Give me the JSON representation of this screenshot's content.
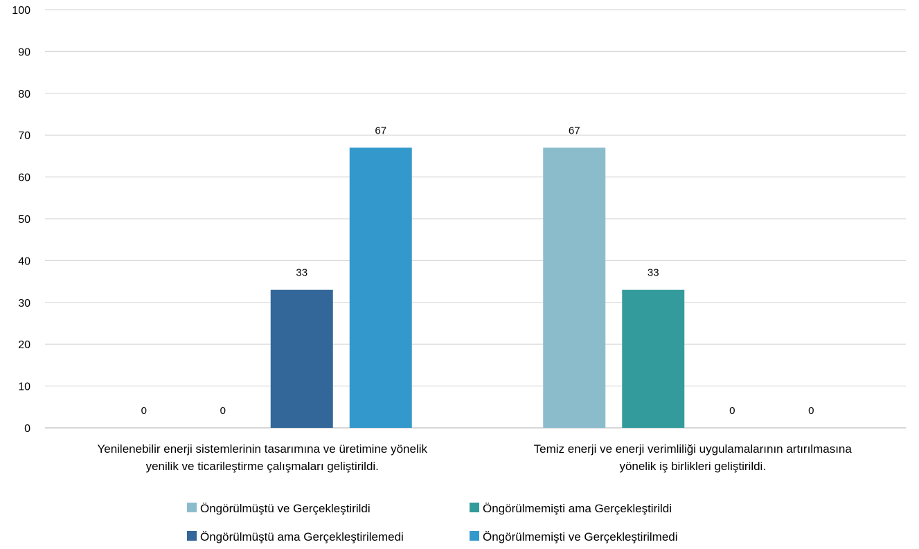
{
  "chart_data": {
    "type": "bar",
    "categories": [
      [
        "Yenilenebilir enerji sistemlerinin tasarımına ve üretimine yönelik",
        "yenilik ve ticarileştirme çalışmaları geliştirildi."
      ],
      [
        "Temiz enerji ve enerji verimliliği uygulamalarının artırılmasına",
        "yönelik iş birlikleri geliştirildi."
      ]
    ],
    "series": [
      {
        "name": "Öngörülmüştü ve Gerçekleştirildi",
        "color": "#8bbccc",
        "values": [
          0,
          67
        ]
      },
      {
        "name": "Öngörülmemişti ama Gerçekleştirildi",
        "color": "#339b9b",
        "values": [
          0,
          33
        ]
      },
      {
        "name": "Öngörülmüştü ama Gerçekleştirilemedi",
        "color": "#336699",
        "values": [
          33,
          0
        ]
      },
      {
        "name": "Öngörülmemişti  ve Gerçekleştirilmedi",
        "color": "#3399cc",
        "values": [
          67,
          0
        ]
      }
    ],
    "ylim": [
      0,
      100
    ],
    "yticks": [
      0,
      10,
      20,
      30,
      40,
      50,
      60,
      70,
      80,
      90,
      100
    ],
    "grid": true,
    "legend_position": "bottom",
    "data_labels": true
  }
}
